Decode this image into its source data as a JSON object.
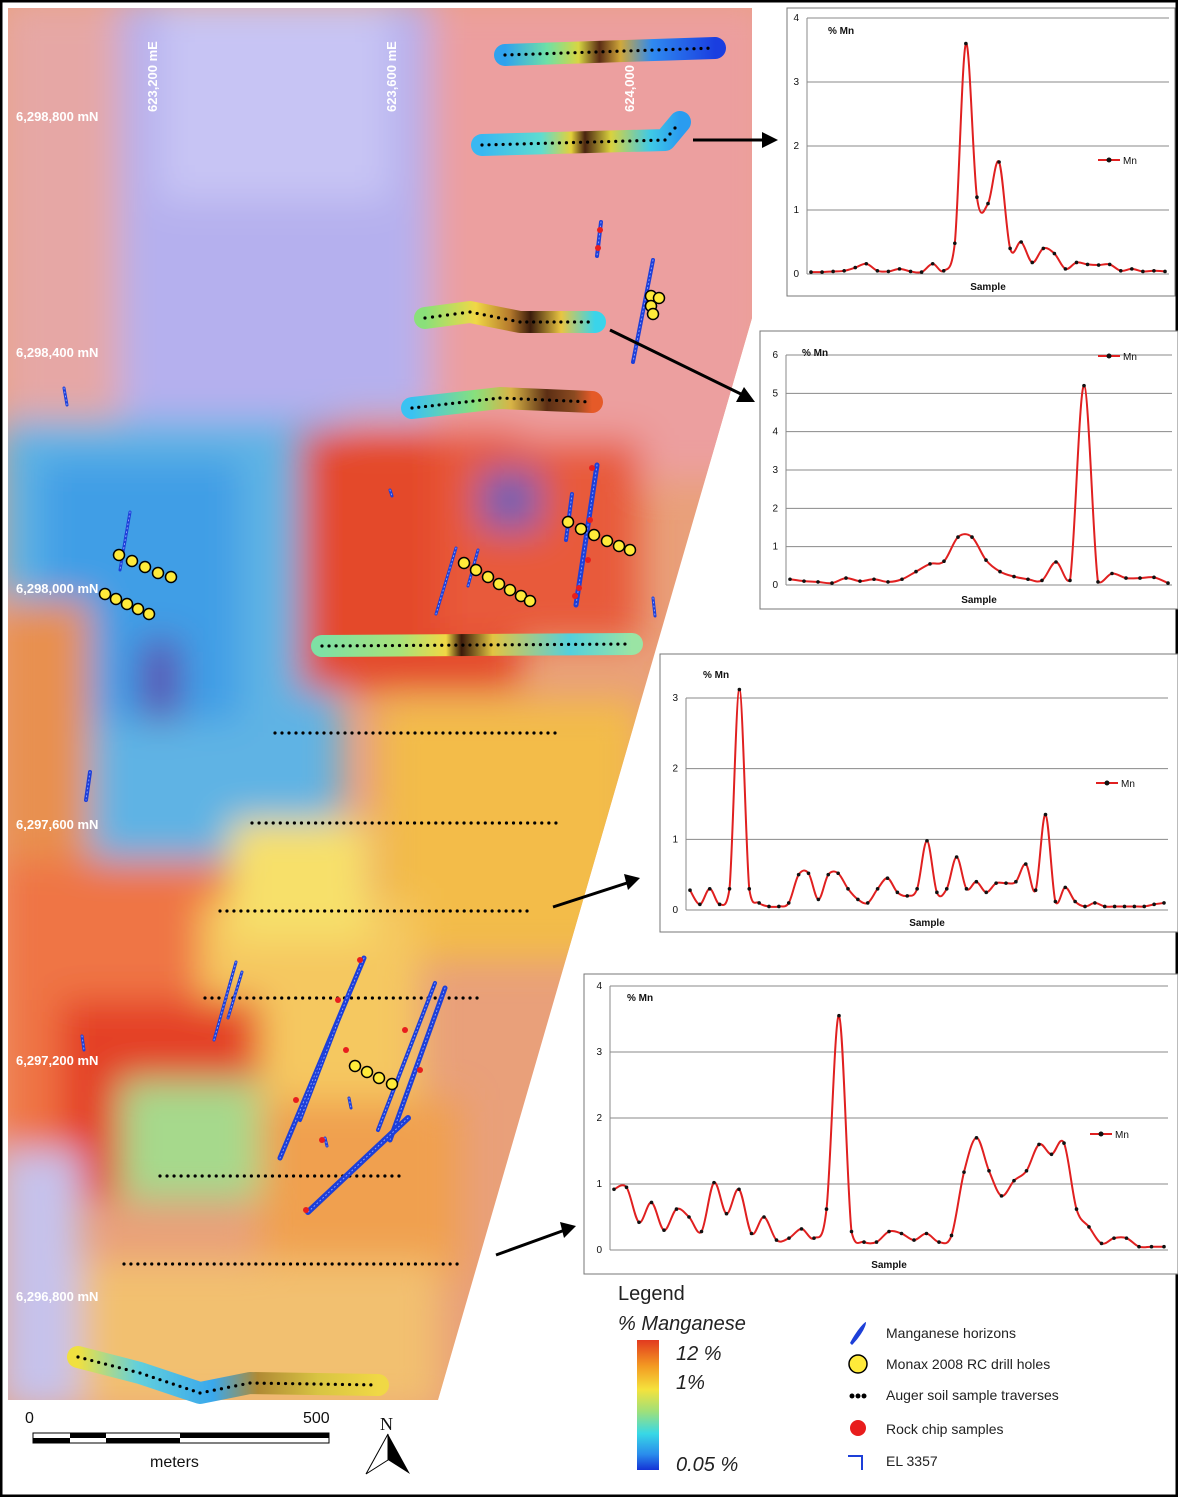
{
  "map": {
    "northing_labels": [
      "6,298,800 mN",
      "6,298,400 mN",
      "6,298,000 mN",
      "6,297,600 mN",
      "6,297,200 mN",
      "6,296,800 mN"
    ],
    "easting_labels": [
      "623,200 mE",
      "623,600 mE",
      "624,000 mE"
    ],
    "colors": {
      "high": "#e8402a",
      "mid": "#f5e23c",
      "low": "#2f6fd8",
      "background_low": "#b9b4ec",
      "drill": "#ffea3a",
      "rock": "#e81d1d",
      "horizon": "#1d3fd8"
    }
  },
  "charts_text": {
    "y_label": "% Mn",
    "x_label": "Sample",
    "legend": "Mn"
  },
  "chart_data": [
    {
      "type": "line",
      "title": "",
      "xlabel": "Sample",
      "ylabel": "% Mn",
      "ylim": [
        0,
        4
      ],
      "yticks": [
        0,
        1,
        2,
        3,
        4
      ],
      "series": [
        {
          "name": "Mn",
          "values": [
            0.03,
            0.03,
            0.04,
            0.05,
            0.1,
            0.16,
            0.05,
            0.04,
            0.08,
            0.04,
            0.03,
            0.16,
            0.05,
            0.48,
            3.6,
            1.2,
            1.1,
            1.75,
            0.4,
            0.5,
            0.18,
            0.4,
            0.32,
            0.08,
            0.18,
            0.15,
            0.14,
            0.15,
            0.05,
            0.08,
            0.04,
            0.05,
            0.04
          ]
        }
      ]
    },
    {
      "type": "line",
      "title": "",
      "xlabel": "Sample",
      "ylabel": "% Mn",
      "ylim": [
        0,
        6
      ],
      "yticks": [
        0,
        1,
        2,
        3,
        4,
        5,
        6
      ],
      "series": [
        {
          "name": "Mn",
          "values": [
            0.15,
            0.1,
            0.08,
            0.05,
            0.18,
            0.1,
            0.15,
            0.08,
            0.15,
            0.35,
            0.55,
            0.62,
            1.25,
            1.25,
            0.65,
            0.35,
            0.22,
            0.15,
            0.12,
            0.6,
            0.12,
            5.2,
            0.08,
            0.3,
            0.18,
            0.18,
            0.2,
            0.05
          ]
        }
      ]
    },
    {
      "type": "line",
      "title": "",
      "xlabel": "Sample",
      "ylabel": "% Mn",
      "ylim": [
        0,
        3
      ],
      "yticks": [
        0,
        1,
        2,
        3
      ],
      "series": [
        {
          "name": "Mn",
          "values": [
            0.28,
            0.08,
            0.3,
            0.08,
            0.3,
            3.12,
            0.3,
            0.1,
            0.05,
            0.05,
            0.1,
            0.5,
            0.52,
            0.15,
            0.5,
            0.52,
            0.3,
            0.15,
            0.1,
            0.3,
            0.45,
            0.25,
            0.2,
            0.3,
            0.98,
            0.25,
            0.3,
            0.75,
            0.3,
            0.4,
            0.25,
            0.38,
            0.38,
            0.4,
            0.65,
            0.28,
            1.35,
            0.12,
            0.32,
            0.12,
            0.05,
            0.1,
            0.05,
            0.05,
            0.05,
            0.05,
            0.05,
            0.08,
            0.1
          ]
        }
      ]
    },
    {
      "type": "line",
      "title": "",
      "xlabel": "Sample",
      "ylabel": "% Mn",
      "ylim": [
        0,
        4
      ],
      "yticks": [
        0,
        1,
        2,
        3,
        4
      ],
      "series": [
        {
          "name": "Mn",
          "values": [
            0.92,
            0.95,
            0.42,
            0.72,
            0.3,
            0.62,
            0.5,
            0.28,
            1.02,
            0.55,
            0.92,
            0.25,
            0.5,
            0.15,
            0.18,
            0.32,
            0.18,
            0.62,
            3.55,
            0.28,
            0.12,
            0.12,
            0.28,
            0.25,
            0.15,
            0.25,
            0.12,
            0.22,
            1.18,
            1.7,
            1.2,
            0.82,
            1.05,
            1.2,
            1.6,
            1.45,
            1.62,
            0.62,
            0.35,
            0.1,
            0.18,
            0.18,
            0.05,
            0.05,
            0.05
          ]
        }
      ]
    }
  ],
  "legend": {
    "title": "Legend",
    "subtitle": "% Manganese",
    "scale_high": "12 %",
    "scale_mid": "1%",
    "scale_low": "0.05 %",
    "items": [
      {
        "label": "Manganese horizons",
        "icon": "blue-lens-icon"
      },
      {
        "label": "Monax 2008 RC drill holes",
        "icon": "yellow-circle-icon"
      },
      {
        "label": "Auger soil sample traverses",
        "icon": "black-dots-icon"
      },
      {
        "label": "Rock chip samples",
        "icon": "red-dot-icon"
      },
      {
        "label": "EL 3357",
        "icon": "blue-bracket-icon"
      }
    ]
  },
  "scale_bar": {
    "start": "0",
    "end": "500",
    "unit": "meters"
  },
  "north_arrow": {
    "label": "N"
  }
}
